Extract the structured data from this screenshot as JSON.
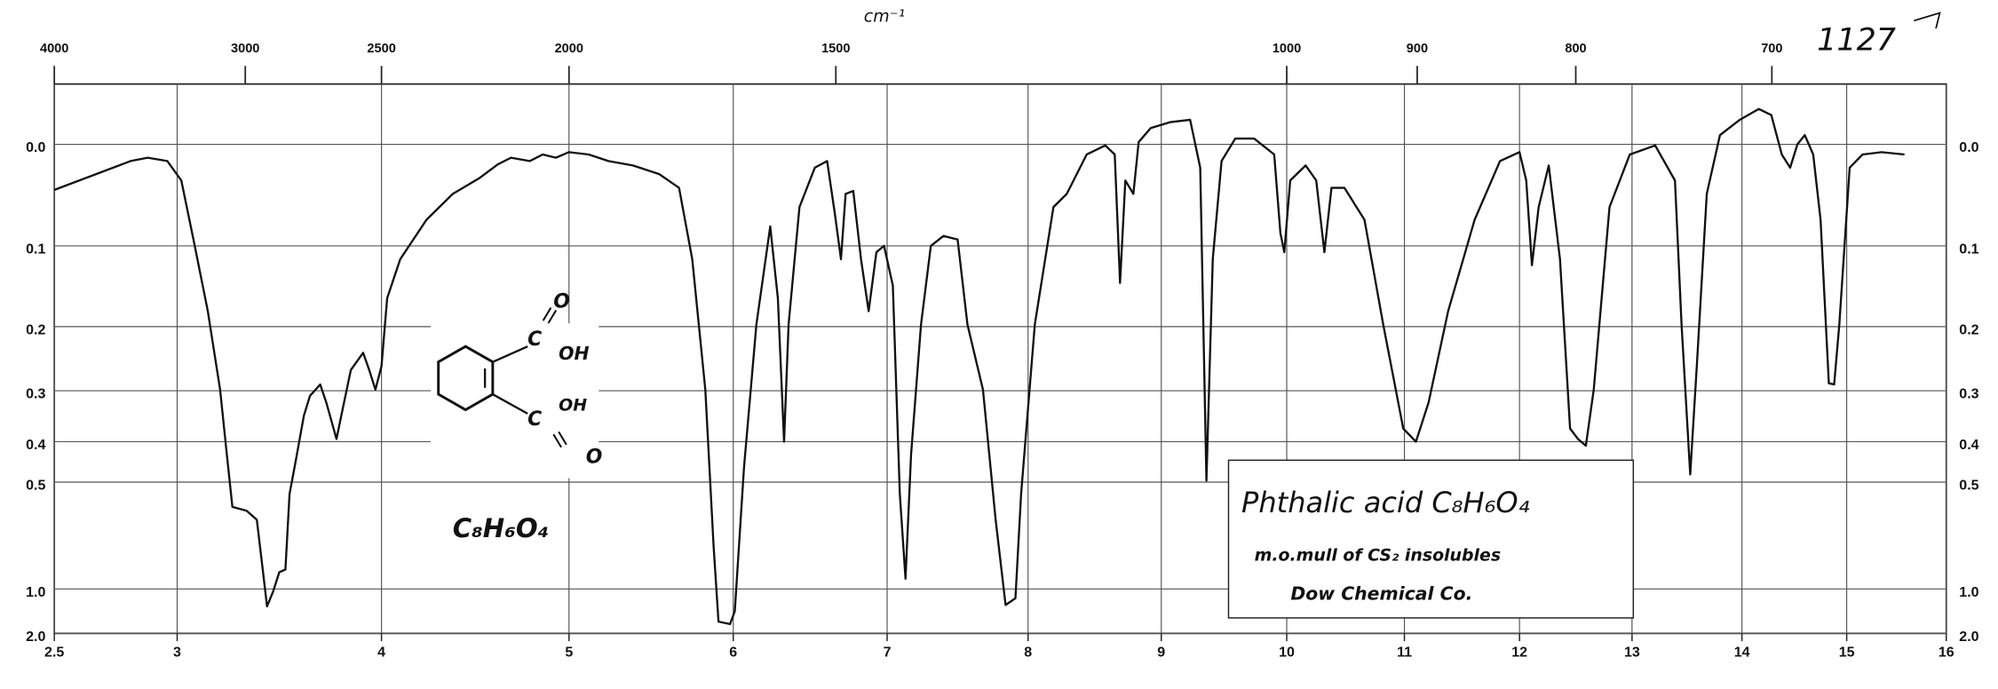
{
  "chart_data": {
    "type": "line",
    "color": "#111111",
    "grid": true,
    "y_scale": "transmittance-linear",
    "x": [
      2.5,
      2.81,
      2.88,
      2.96,
      3.02,
      3.08,
      3.15,
      3.21,
      3.24,
      3.27,
      3.34,
      3.39,
      3.42,
      3.44,
      3.47,
      3.5,
      3.53,
      3.55,
      3.58,
      3.62,
      3.65,
      3.7,
      3.73,
      3.78,
      3.81,
      3.85,
      3.91,
      3.94,
      3.97,
      4.0,
      4.03,
      4.1,
      4.24,
      4.38,
      4.52,
      4.62,
      4.69,
      4.79,
      4.86,
      4.93,
      5.0,
      5.12,
      5.24,
      5.39,
      5.55,
      5.67,
      5.75,
      5.83,
      5.88,
      5.91,
      5.98,
      6.01,
      6.07,
      6.15,
      6.24,
      6.29,
      6.33,
      6.36,
      6.43,
      6.53,
      6.61,
      6.66,
      6.7,
      6.73,
      6.78,
      6.83,
      6.88,
      6.93,
      6.98,
      7.04,
      7.09,
      7.13,
      7.17,
      7.24,
      7.31,
      7.4,
      7.5,
      7.57,
      7.68,
      7.77,
      7.84,
      7.91,
      7.95,
      8.05,
      8.19,
      8.29,
      8.44,
      8.58,
      8.65,
      8.69,
      8.73,
      8.79,
      8.83,
      8.92,
      9.07,
      9.23,
      9.31,
      9.36,
      9.41,
      9.48,
      9.59,
      9.74,
      9.9,
      9.95,
      9.98,
      10.03,
      10.16,
      10.25,
      10.32,
      10.38,
      10.49,
      10.66,
      10.82,
      10.99,
      11.1,
      11.21,
      11.38,
      11.61,
      11.83,
      12.0,
      12.06,
      12.11,
      12.17,
      12.26,
      12.36,
      12.45,
      12.52,
      12.59,
      12.66,
      12.8,
      12.98,
      13.21,
      13.39,
      13.45,
      13.53,
      13.59,
      13.68,
      13.8,
      13.98,
      14.16,
      14.28,
      14.38,
      14.46,
      14.53,
      14.6,
      14.68,
      14.75,
      14.83,
      14.88,
      14.93,
      15.03,
      15.16,
      15.35,
      15.58
    ],
    "values": [
      0.042,
      0.015,
      0.012,
      0.015,
      0.033,
      0.093,
      0.179,
      0.298,
      0.415,
      0.575,
      0.588,
      0.62,
      0.873,
      1.19,
      1.02,
      0.873,
      0.856,
      0.534,
      0.446,
      0.346,
      0.309,
      0.289,
      0.321,
      0.394,
      0.333,
      0.265,
      0.238,
      0.265,
      0.298,
      0.259,
      0.162,
      0.115,
      0.072,
      0.046,
      0.031,
      0.018,
      0.012,
      0.015,
      0.009,
      0.012,
      0.007,
      0.009,
      0.015,
      0.019,
      0.027,
      0.04,
      0.115,
      0.298,
      0.728,
      1.47,
      1.54,
      1.26,
      0.462,
      0.197,
      0.079,
      0.162,
      0.4,
      0.197,
      0.059,
      0.021,
      0.015,
      0.065,
      0.115,
      0.046,
      0.043,
      0.115,
      0.179,
      0.107,
      0.1,
      0.146,
      0.534,
      0.918,
      0.43,
      0.197,
      0.1,
      0.089,
      0.093,
      0.197,
      0.298,
      0.62,
      1.17,
      1.09,
      0.534,
      0.197,
      0.059,
      0.046,
      0.009,
      0.001,
      0.009,
      0.143,
      0.033,
      0.046,
      -0.002,
      -0.014,
      -0.019,
      -0.021,
      0.021,
      0.496,
      0.115,
      0.015,
      -0.005,
      -0.005,
      0.009,
      0.086,
      0.107,
      0.033,
      0.019,
      0.033,
      0.107,
      0.04,
      0.04,
      0.072,
      0.197,
      0.372,
      0.4,
      0.321,
      0.179,
      0.072,
      0.015,
      0.007,
      0.033,
      0.122,
      0.059,
      0.019,
      0.115,
      0.372,
      0.394,
      0.409,
      0.298,
      0.059,
      0.009,
      0.001,
      0.033,
      0.197,
      0.479,
      0.255,
      0.046,
      -0.008,
      -0.021,
      -0.03,
      -0.025,
      0.009,
      0.021,
      0,
      -0.008,
      0.009,
      0.072,
      0.287,
      0.289,
      0.197,
      0.021,
      0.009,
      0.007,
      0.009
    ],
    "xlim": [
      2.5,
      16
    ],
    "xticks": [
      {
        "value": 2.5,
        "label": "2.5"
      },
      3,
      4,
      5,
      6,
      7,
      8,
      9,
      10,
      11,
      12,
      13,
      14,
      15,
      16
    ],
    "x2ticks": [
      4000,
      3000,
      2500,
      2000,
      1500,
      1000,
      900,
      800,
      700
    ],
    "x2_unit_label": "cm⁻¹",
    "ylim": [
      -0.05,
      2.0
    ],
    "yticks": [
      {
        "value": 0,
        "label": "0.0"
      },
      0.1,
      0.2,
      0.3,
      0.4,
      0.5,
      {
        "value": 1,
        "label": "1.0"
      },
      {
        "value": 2,
        "label": "2.0"
      }
    ],
    "catalog_number": "1127",
    "structure_labels": [
      "O",
      "C",
      "OH",
      "C",
      "OH",
      "O"
    ],
    "formula_note": "C₈H₆O₄",
    "caption": [
      "Phthalic acid C₈H₆O₄",
      "m.o.mull of CS₂ insolubles",
      "Dow Chemical Co."
    ]
  }
}
